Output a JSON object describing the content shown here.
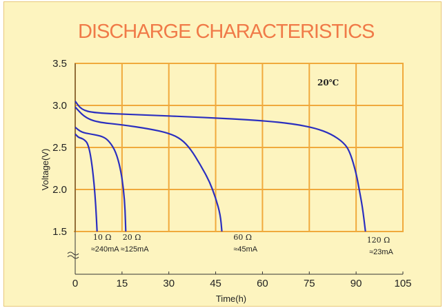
{
  "chart_data": {
    "type": "line",
    "title": "DISCHARGE CHARACTERISTICS",
    "xlabel": "Time(h)",
    "ylabel": "Voltage(V)",
    "xlim": [
      0,
      105
    ],
    "ylim": [
      1.5,
      3.5
    ],
    "x_ticks": [
      "0",
      "15",
      "30",
      "45",
      "60",
      "75",
      "90",
      "105"
    ],
    "y_ticks": [
      "3.5",
      "3.0",
      "2.5",
      "2.0",
      "1.5"
    ],
    "temperature": "20℃",
    "grid": true,
    "colors": {
      "grid": "#f0a93c",
      "line": "#2b2fbf",
      "title": "#f07a48",
      "background": "#fdf4bf"
    },
    "series": [
      {
        "resistance": "10 Ω",
        "current": "≈240mA",
        "points": [
          [
            0,
            2.66
          ],
          [
            1,
            2.62
          ],
          [
            2,
            2.61
          ],
          [
            3,
            2.59
          ],
          [
            4,
            2.55
          ],
          [
            5,
            2.4
          ],
          [
            6,
            2.1
          ],
          [
            6.6,
            1.8
          ],
          [
            7,
            1.5
          ]
        ]
      },
      {
        "resistance": "20 Ω",
        "current": "≈125mA",
        "points": [
          [
            0,
            2.74
          ],
          [
            2,
            2.68
          ],
          [
            5,
            2.66
          ],
          [
            9,
            2.63
          ],
          [
            11,
            2.57
          ],
          [
            13,
            2.45
          ],
          [
            14.5,
            2.25
          ],
          [
            15.5,
            2.0
          ],
          [
            16,
            1.75
          ],
          [
            16.2,
            1.5
          ]
        ]
      },
      {
        "resistance": "60 Ω",
        "current": "≈45mA",
        "points": [
          [
            0,
            2.98
          ],
          [
            3,
            2.86
          ],
          [
            7,
            2.8
          ],
          [
            15,
            2.77
          ],
          [
            24,
            2.72
          ],
          [
            30,
            2.67
          ],
          [
            34,
            2.6
          ],
          [
            37,
            2.48
          ],
          [
            40,
            2.3
          ],
          [
            43,
            2.1
          ],
          [
            45,
            1.9
          ],
          [
            46.5,
            1.7
          ],
          [
            47,
            1.5
          ]
        ]
      },
      {
        "resistance": "120 Ω",
        "current": "≈23mA",
        "points": [
          [
            0,
            3.05
          ],
          [
            2,
            2.95
          ],
          [
            6,
            2.91
          ],
          [
            20,
            2.89
          ],
          [
            40,
            2.86
          ],
          [
            60,
            2.82
          ],
          [
            70,
            2.78
          ],
          [
            77,
            2.73
          ],
          [
            82,
            2.66
          ],
          [
            86,
            2.56
          ],
          [
            88,
            2.45
          ],
          [
            90,
            2.2
          ],
          [
            91,
            2.0
          ],
          [
            92,
            1.8
          ],
          [
            93,
            1.5
          ]
        ]
      }
    ]
  }
}
